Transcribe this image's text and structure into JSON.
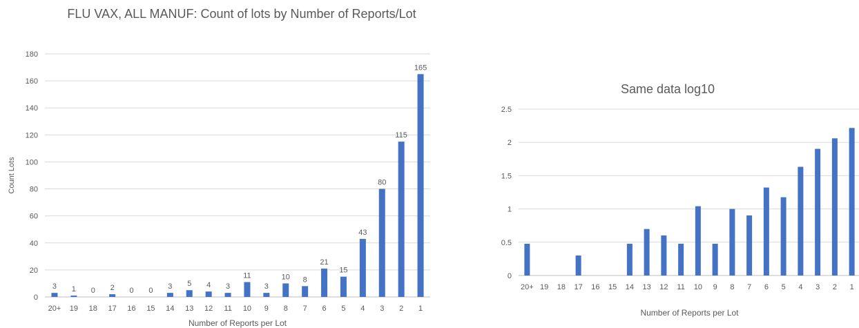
{
  "chart_data": [
    {
      "type": "bar",
      "title": "FLU VAX, ALL MANUF: Count of lots by Number of Reports/Lot",
      "xlabel": "Number of Reports per Lot",
      "ylabel": "Count Lots",
      "categories": [
        "20+",
        "19",
        "18",
        "17",
        "16",
        "15",
        "14",
        "13",
        "12",
        "11",
        "10",
        "9",
        "8",
        "7",
        "6",
        "5",
        "4",
        "3",
        "2",
        "1"
      ],
      "values": [
        3,
        1,
        0,
        2,
        0,
        0,
        3,
        5,
        4,
        3,
        11,
        3,
        10,
        8,
        21,
        15,
        43,
        80,
        115,
        165
      ],
      "ylim": [
        0,
        180
      ],
      "yticks": [
        0,
        20,
        40,
        60,
        80,
        100,
        120,
        140,
        160,
        180
      ],
      "data_labels": true,
      "grid": true,
      "bar_color": "#4472C4"
    },
    {
      "type": "bar",
      "title": "Same data log10",
      "xlabel": "Number of Reports per Lot",
      "ylabel": "",
      "categories": [
        "20+",
        "19",
        "18",
        "17",
        "16",
        "15",
        "14",
        "13",
        "12",
        "11",
        "10",
        "9",
        "8",
        "7",
        "6",
        "5",
        "4",
        "3",
        "2",
        "1"
      ],
      "values": [
        0.477,
        0,
        0,
        0.301,
        0,
        0,
        0.477,
        0.699,
        0.602,
        0.477,
        1.041,
        0.477,
        1.0,
        0.903,
        1.322,
        1.176,
        1.633,
        1.903,
        2.061,
        2.217
      ],
      "ylim": [
        0,
        2.5
      ],
      "yticks": [
        "0",
        "0.5",
        "1",
        "1.5",
        "2",
        "2.5"
      ],
      "data_labels": false,
      "grid": true,
      "bar_color": "#4472C4"
    }
  ]
}
